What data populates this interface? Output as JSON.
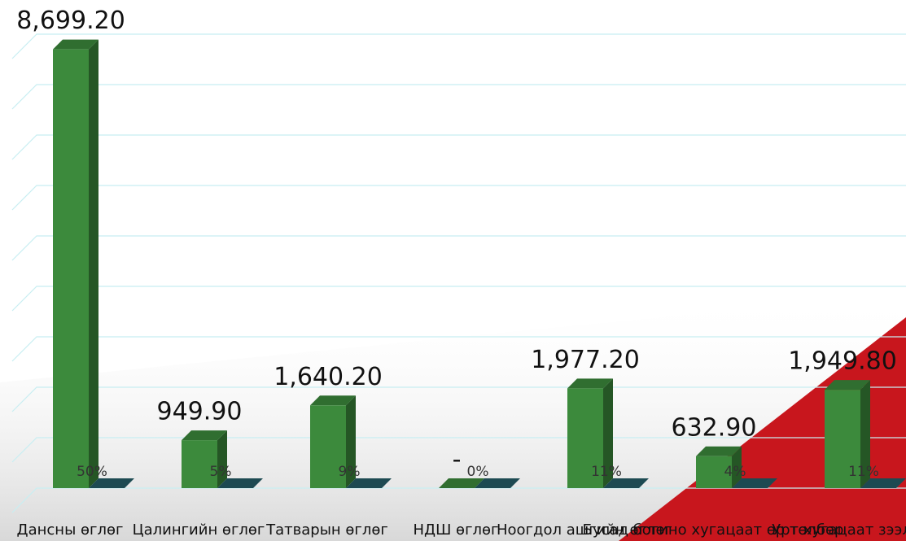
{
  "chart_data": {
    "type": "bar3d",
    "categories": [
      "Дансны өглөг",
      "Цалингийн өглөг",
      "Татварын өглөг",
      "НДШ өглөг",
      "Ноогдол ашгийн өглөг",
      "Бусад богино хугацаат өр төлбөр",
      "Урт хугацаат зээл"
    ],
    "series": [
      {
        "color": "#3c8a3c",
        "values": [
          8699.2,
          949.9,
          1640.2,
          0,
          1977.2,
          632.9,
          1949.8
        ],
        "value_labels": [
          "8,699.20",
          "949.90",
          "1,640.20",
          "-",
          "1,977.20",
          "632.90",
          "1,949.80"
        ]
      },
      {
        "color": "#1d4a52",
        "values": [
          0.5,
          0.05,
          0.09,
          0,
          0.11,
          0.04,
          0.11
        ],
        "value_labels": [
          "50%",
          "5%",
          "9%",
          "0%",
          "11%",
          "4%",
          "11%"
        ]
      }
    ],
    "ylim": [
      0,
      9000
    ],
    "yticks": [
      0,
      1000,
      2000,
      3000,
      4000,
      5000,
      6000,
      7000,
      8000,
      9000
    ],
    "grid": true
  }
}
